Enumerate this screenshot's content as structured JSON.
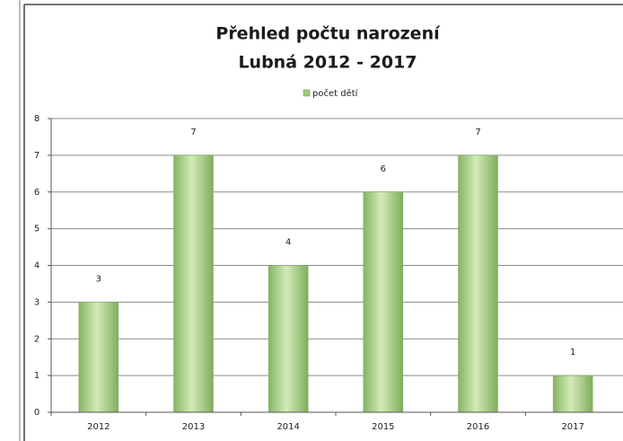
{
  "chart_data": {
    "type": "bar",
    "title": "Přehled počtu narození",
    "subtitle": "Lubná 2012 - 2017",
    "categories": [
      "2012",
      "2013",
      "2014",
      "2015",
      "2016",
      "2017"
    ],
    "series": [
      {
        "name": "počet dětí",
        "color": "#9ccb78",
        "values": [
          3,
          7,
          4,
          6,
          7,
          1
        ]
      }
    ],
    "ylim": [
      0,
      8
    ],
    "yticks": [
      0,
      1,
      2,
      3,
      4,
      5,
      6,
      7,
      8
    ],
    "grid": true,
    "legend": "top"
  }
}
